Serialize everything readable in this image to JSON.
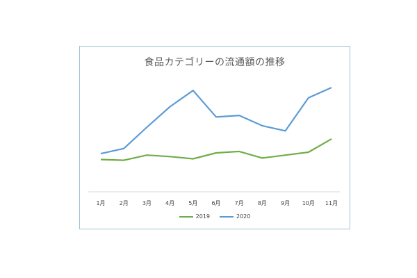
{
  "chart_data": {
    "type": "line",
    "title": "食品カテゴリーの流通額の推移",
    "xlabel": "",
    "ylabel": "",
    "categories": [
      "1月",
      "2月",
      "3月",
      "4月",
      "5月",
      "6月",
      "7月",
      "8月",
      "9月",
      "10月",
      "11月"
    ],
    "series": [
      {
        "name": "2019",
        "color": "#70ad47",
        "values": [
          22,
          21.5,
          25,
          24,
          22.5,
          26.5,
          27.5,
          23,
          25,
          27,
          36
        ]
      },
      {
        "name": "2020",
        "color": "#5b9bd5",
        "values": [
          26,
          29.5,
          44,
          58,
          69,
          51,
          52,
          45,
          41.5,
          64,
          71
        ]
      }
    ],
    "ylim": [
      0,
      80
    ],
    "grid": false,
    "legend": "bottom"
  }
}
